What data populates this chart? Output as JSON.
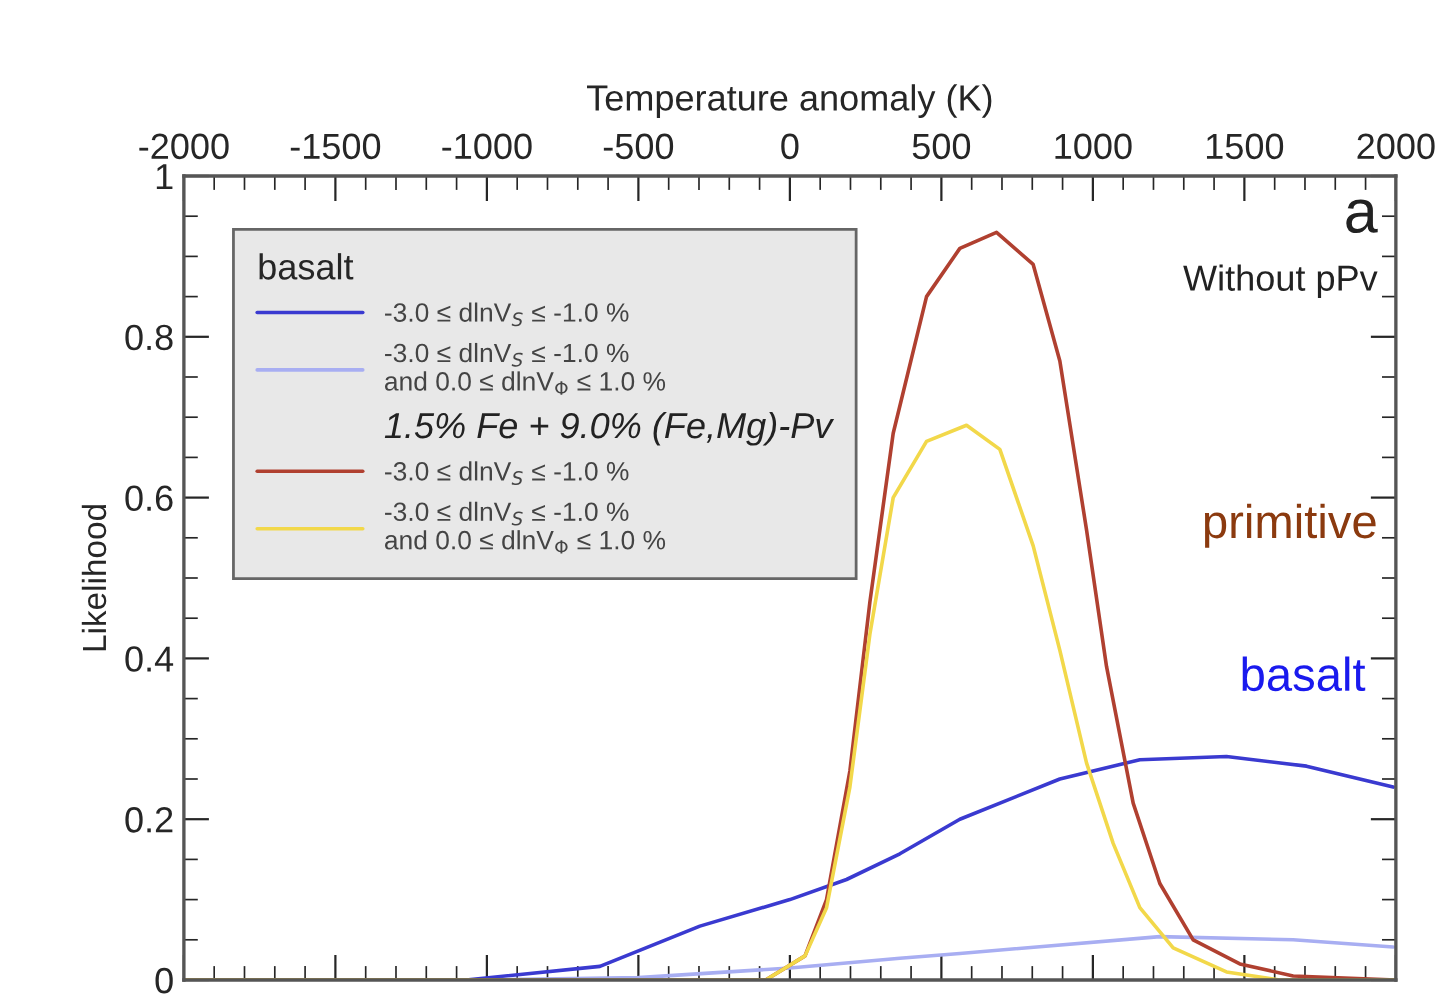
{
  "chart_data": {
    "type": "line",
    "xlabel": "Temperature anomaly (K)",
    "ylabel": "Likelihood",
    "xlim": [
      -2000,
      2000
    ],
    "xticks": [
      -2000,
      -1500,
      -1000,
      -500,
      0,
      500,
      1000,
      1500,
      2000
    ],
    "ylim": [
      0,
      1
    ],
    "yticks": [
      0,
      0.2,
      0.4,
      0.6,
      0.8,
      1
    ],
    "legend": "top left",
    "legend_title": "basalt",
    "grid": false,
    "line_style": "solid",
    "marker": "none",
    "series": [
      {
        "name": "-3.0 ≤ dlnV$_{S}$ ≤ -1.0 %",
        "color": "#3a3ad0",
        "x": [
          -2000,
          -1069,
          -627,
          -297,
          0,
          187,
          363,
          561,
          891,
          1155,
          1441,
          1705,
          1991
        ],
        "values": [
          0,
          0,
          0.017,
          0.067,
          0.1,
          0.125,
          0.157,
          0.2,
          0.25,
          0.274,
          0.278,
          0.266,
          0.24
        ]
      },
      {
        "name": "-3.0 ≤ dlnV$_{S}$ ≤ -1.0 %\nand 0.0 ≤ dlnV$_{Φ}$ ≤ 1.0 %",
        "color": "#a8aef2",
        "x": [
          -2000,
          -1000,
          -500,
          0,
          363,
          561,
          1221,
          1661,
          1991
        ],
        "values": [
          0,
          0,
          0.003,
          0.015,
          0.027,
          0.033,
          0.054,
          0.05,
          0.041
        ]
      },
      {
        "name": "-3.0 ≤ dlnV$_{S}$ ≤ -1.0 %",
        "color": "#b04030",
        "x": [
          -2000,
          -80,
          50,
          121,
          198,
          264,
          341,
          451,
          561,
          682,
          803,
          891,
          979,
          1045,
          1133,
          1221,
          1331,
          1485,
          1661,
          2000
        ],
        "values": [
          0,
          0,
          0.03,
          0.1,
          0.26,
          0.47,
          0.68,
          0.85,
          0.91,
          0.93,
          0.89,
          0.77,
          0.56,
          0.39,
          0.22,
          0.12,
          0.05,
          0.02,
          0.005,
          0
        ]
      },
      {
        "name": "-3.0 ≤ dlnV$_{S}$ ≤ -1.0 %\nand 0.0 ≤ dlnV$_{Φ}$ ≤ 1.0 %",
        "color": "#f2d84a",
        "x": [
          -2000,
          -80,
          50,
          121,
          198,
          264,
          341,
          451,
          583,
          693,
          803,
          891,
          979,
          1067,
          1155,
          1265,
          1441,
          1617,
          2000
        ],
        "values": [
          0,
          0,
          0.03,
          0.09,
          0.24,
          0.43,
          0.6,
          0.67,
          0.69,
          0.66,
          0.54,
          0.41,
          0.27,
          0.17,
          0.09,
          0.04,
          0.01,
          0,
          0
        ]
      }
    ],
    "annotations": [
      "1.5% Fe + 9.0% (Fe,Mg)-Pv",
      "a",
      "Without pPv",
      "primitive",
      "basalt"
    ]
  }
}
